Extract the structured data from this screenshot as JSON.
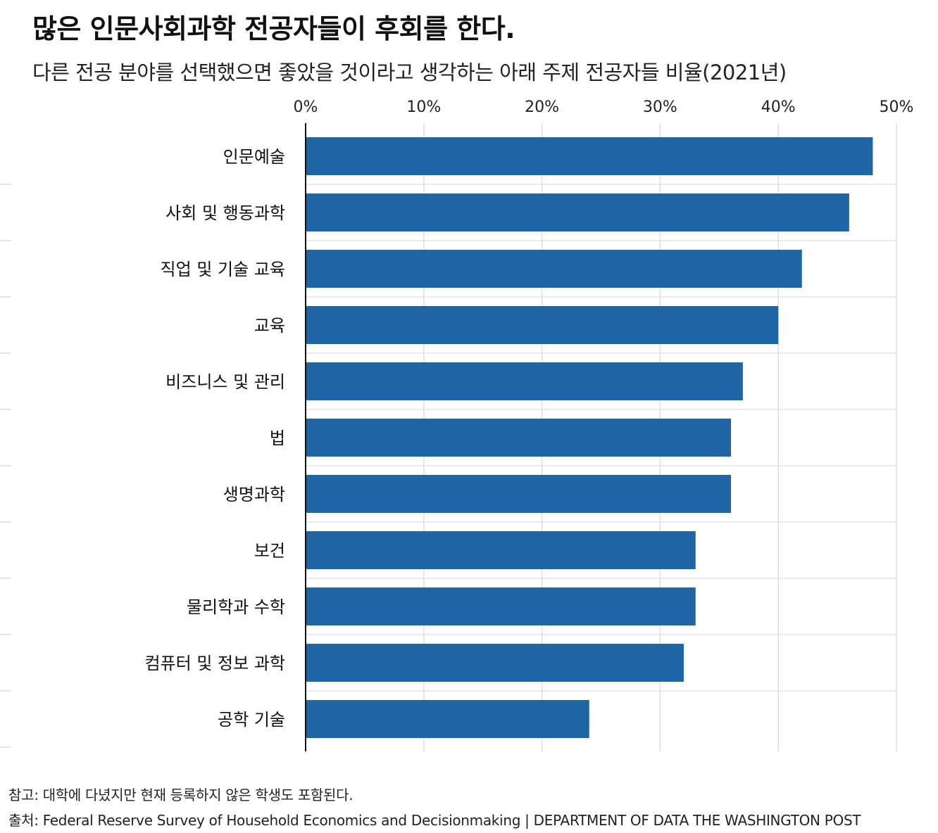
{
  "title": "많은 인문사회과학 전공자들이 후회를 한다.",
  "subtitle": "다른 전공 분야를 선택했으면 좋았을 것이라고 생각하는 아래  주제 전공자들 비율(2021년)",
  "note": "참고: 대학에 다녔지만 현재 등록하지 않은 학생도 포함된다.",
  "source": "출처: Federal Reserve Survey of Household Economics and Decisionmaking | DEPARTMENT OF DATA THE WASHINGTON POST",
  "colors": {
    "bar": "#2066a6",
    "grid": "#dddddd",
    "axis": "#111111"
  },
  "chart_data": {
    "type": "bar",
    "orientation": "horizontal",
    "categories": [
      "인문예술",
      "사회 및 행동과학",
      "직업 및 기술 교육",
      "교육",
      "비즈니스 및 관리",
      "법",
      "생명과학",
      "보건",
      "물리학과 수학",
      "컴퓨터 및 정보 과학",
      "공학 기술"
    ],
    "values": [
      48,
      46,
      42,
      40,
      37,
      36,
      36,
      33,
      33,
      32,
      24
    ],
    "xlim": [
      0,
      50
    ],
    "xticks": [
      "0%",
      "10%",
      "20%",
      "30%",
      "40%",
      "50%"
    ],
    "xtick_values": [
      0,
      10,
      20,
      30,
      40,
      50
    ],
    "axis_position": "top",
    "grid": true
  }
}
